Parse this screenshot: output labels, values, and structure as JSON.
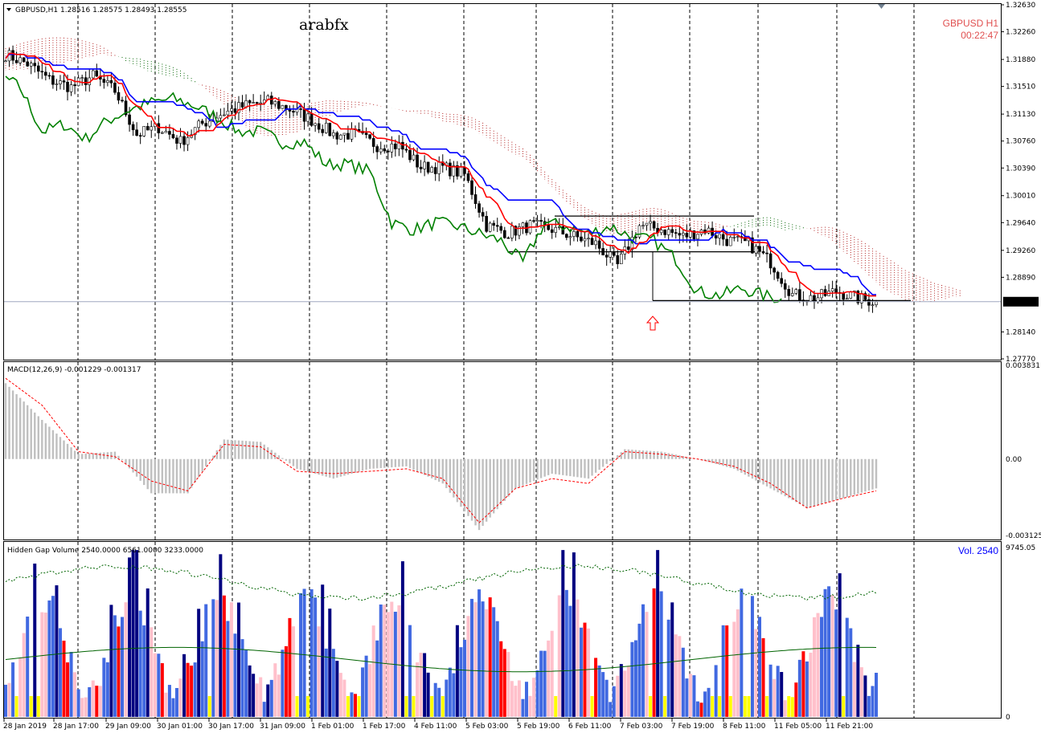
{
  "header": {
    "symbol_line": "GBPUSD,H1  1.28516 1.28575 1.28493 1.28555",
    "watermark": "arabfx",
    "symbol_tf": "GBPUSD  H1",
    "timer": "00:22:47"
  },
  "colors": {
    "tenkan": "#ff0000",
    "kijun": "#0000ff",
    "chikou": "#008000",
    "cloud_bull": "#006400",
    "cloud_bear": "#b22222",
    "macd_hist": "#c0c0c0",
    "macd_signal": "#ff0000",
    "vol_blue": "#4169e1",
    "vol_red": "#ff0000",
    "vol_navy": "#000080",
    "vol_pink": "#ffc0cb",
    "vol_yellow": "#ffff00",
    "arrow": "#ff0000"
  },
  "chart_data": [
    {
      "type": "candlestick",
      "panel": "price",
      "ylim": [
        1.2777,
        1.3263
      ],
      "y_ticks": [
        "1.32630",
        "1.32260",
        "1.31880",
        "1.31510",
        "1.31130",
        "1.30760",
        "1.30390",
        "1.30010",
        "1.29640",
        "1.29260",
        "1.28890",
        "1.28140",
        "1.27770"
      ],
      "current_price": "1.28555",
      "current_value": 1.28555,
      "indicators": [
        "Tenkan-sen",
        "Kijun-sen",
        "Chikou span",
        "Kumo cloud"
      ],
      "close_path": [
        [
          0,
          1.3195
        ],
        [
          6,
          1.3182
        ],
        [
          12,
          1.316
        ],
        [
          18,
          1.315
        ],
        [
          24,
          1.3165
        ],
        [
          30,
          1.3145
        ],
        [
          36,
          1.3085
        ],
        [
          42,
          1.3095
        ],
        [
          48,
          1.3075
        ],
        [
          54,
          1.31
        ],
        [
          60,
          1.3115
        ],
        [
          66,
          1.3125
        ],
        [
          72,
          1.313
        ],
        [
          78,
          1.312
        ],
        [
          84,
          1.3105
        ],
        [
          90,
          1.3085
        ],
        [
          96,
          1.3085
        ],
        [
          102,
          1.307
        ],
        [
          108,
          1.307
        ],
        [
          114,
          1.304
        ],
        [
          120,
          1.304
        ],
        [
          126,
          1.303
        ],
        [
          132,
          1.296
        ],
        [
          138,
          1.295
        ],
        [
          144,
          1.296
        ],
        [
          150,
          1.2955
        ],
        [
          156,
          1.2945
        ],
        [
          162,
          1.2935
        ],
        [
          168,
          1.2905
        ],
        [
          174,
          1.296
        ],
        [
          180,
          1.2955
        ],
        [
          186,
          1.2945
        ],
        [
          192,
          1.2955
        ],
        [
          198,
          1.294
        ],
        [
          204,
          1.2935
        ],
        [
          210,
          1.291
        ],
        [
          216,
          1.2865
        ],
        [
          222,
          1.286
        ],
        [
          228,
          1.287
        ],
        [
          234,
          1.286
        ],
        [
          239,
          1.28555
        ]
      ]
    },
    {
      "type": "histogram",
      "panel": "macd",
      "label": "MACD(12,26,9) -0.001229 -0.001317",
      "ylim": [
        -0.003125,
        0.003831
      ],
      "y_ticks": [
        "0.003831",
        "0.00",
        "-0.003125"
      ],
      "series": [
        {
          "name": "MACD",
          "points": [
            [
              0,
              0.0031
            ],
            [
              10,
              0.0016
            ],
            [
              20,
              0.0002
            ],
            [
              30,
              0.0003
            ],
            [
              40,
              -0.0014
            ],
            [
              50,
              -0.0014
            ],
            [
              60,
              0.0008
            ],
            [
              70,
              0.0007
            ],
            [
              80,
              -0.0004
            ],
            [
              90,
              -0.0008
            ],
            [
              100,
              -0.0004
            ],
            [
              110,
              -0.0003
            ],
            [
              120,
              -0.001
            ],
            [
              130,
              -0.0029
            ],
            [
              140,
              -0.0012
            ],
            [
              150,
              -0.0006
            ],
            [
              160,
              -0.0008
            ],
            [
              170,
              0.0004
            ],
            [
              180,
              0.0003
            ],
            [
              190,
              0.0
            ],
            [
              200,
              -0.0004
            ],
            [
              210,
              -0.0012
            ],
            [
              220,
              -0.002
            ],
            [
              230,
              -0.0016
            ],
            [
              239,
              -0.0012
            ]
          ]
        },
        {
          "name": "Signal",
          "points": [
            [
              0,
              0.0033
            ],
            [
              10,
              0.0022
            ],
            [
              20,
              0.0003
            ],
            [
              30,
              0.0001
            ],
            [
              40,
              -0.0009
            ],
            [
              50,
              -0.0013
            ],
            [
              60,
              0.0006
            ],
            [
              70,
              0.0005
            ],
            [
              80,
              -0.0005
            ],
            [
              90,
              -0.0006
            ],
            [
              100,
              -0.0005
            ],
            [
              110,
              -0.0004
            ],
            [
              120,
              -0.0008
            ],
            [
              130,
              -0.0026
            ],
            [
              140,
              -0.0012
            ],
            [
              150,
              -0.0008
            ],
            [
              160,
              -0.001
            ],
            [
              170,
              0.0003
            ],
            [
              180,
              0.0002
            ],
            [
              190,
              0.0
            ],
            [
              200,
              -0.0003
            ],
            [
              210,
              -0.001
            ],
            [
              220,
              -0.002
            ],
            [
              230,
              -0.0016
            ],
            [
              239,
              -0.0013
            ]
          ]
        }
      ]
    },
    {
      "type": "bar",
      "panel": "volume",
      "label": "Hidden Gap Volume 2540.0000 6561.0000 3233.0000",
      "vol_label": "Vol.  2540",
      "ylim": [
        0,
        9745
      ],
      "y_ticks": [
        "9745.05",
        "0"
      ],
      "current_volume": 2540
    }
  ],
  "x_ticks": [
    "28 Jan 2019",
    "28 Jan 17:00",
    "29 Jan 09:00",
    "30 Jan 01:00",
    "30 Jan 17:00",
    "31 Jan 09:00",
    "1 Feb 01:00",
    "1 Feb 17:00",
    "4 Feb 11:00",
    "5 Feb 03:00",
    "5 Feb 19:00",
    "6 Feb 11:00",
    "7 Feb 03:00",
    "7 Feb 19:00",
    "8 Feb 11:00",
    "11 Feb 05:00",
    "11 Feb 21:00"
  ]
}
